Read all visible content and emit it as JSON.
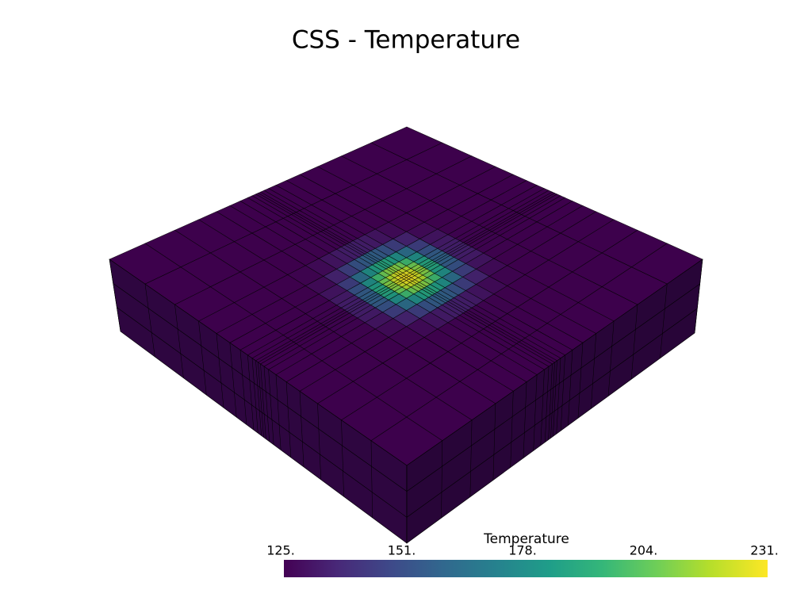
{
  "title": "CSS - Temperature",
  "colorbar": {
    "title": "Temperature",
    "ticks": [
      "125.",
      "151.",
      "178.",
      "204.",
      "231."
    ]
  }
}
